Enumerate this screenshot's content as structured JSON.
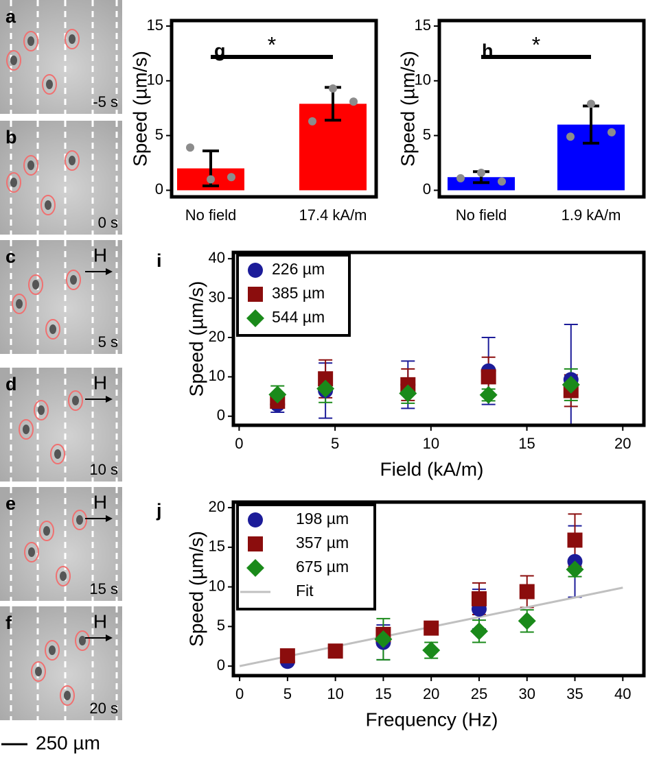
{
  "image_panels": [
    {
      "letter": "a",
      "time": "-5 s"
    },
    {
      "letter": "b",
      "time": "0 s"
    },
    {
      "letter": "c",
      "time": "5 s",
      "field": "H"
    },
    {
      "letter": "d",
      "time": "10 s",
      "field": "H"
    },
    {
      "letter": "e",
      "time": "15 s",
      "field": "H"
    },
    {
      "letter": "f",
      "time": "20 s",
      "field": "H"
    }
  ],
  "scale_bar": "250 µm",
  "chart_data": [
    {
      "type": "bar",
      "panel_label": "g",
      "ylabel": "Speed (µm/s)",
      "categories": [
        "No field",
        "17.4 kA/m"
      ],
      "values": [
        2.0,
        7.9
      ],
      "errors": [
        1.6,
        1.5
      ],
      "points": [
        [
          3.9,
          1.0,
          1.2
        ],
        [
          6.3,
          9.3,
          8.1
        ]
      ],
      "color": "#ff0000",
      "point_color": "#8c8c8c",
      "significance": "*",
      "ylim": [
        -0.6,
        15.5
      ],
      "yticks": [
        0,
        5,
        10,
        15
      ]
    },
    {
      "type": "bar",
      "panel_label": "h",
      "ylabel": "Speed (µm/s)",
      "categories": [
        "No field",
        "1.9 kA/m"
      ],
      "values": [
        1.2,
        6.0
      ],
      "errors": [
        0.5,
        1.7
      ],
      "points": [
        [
          1.1,
          1.6,
          0.8
        ],
        [
          4.9,
          7.9,
          5.3
        ]
      ],
      "color": "#0000ff",
      "point_color": "#8c8c8c",
      "significance": "*",
      "ylim": [
        -0.6,
        15.5
      ],
      "yticks": [
        0,
        5,
        10,
        15
      ]
    },
    {
      "type": "scatter",
      "panel_label": "i",
      "xlabel": "Field (kA/m)",
      "ylabel": "Speed (µm/s)",
      "xlim": [
        -0.3,
        21.1
      ],
      "xticks": [
        0,
        5,
        10,
        15,
        20
      ],
      "ylim": [
        -2.3,
        41.6
      ],
      "yticks": [
        0,
        10,
        20,
        30,
        40
      ],
      "legend": "upper left",
      "series": [
        {
          "name": "226 µm",
          "color": "#1c1c99",
          "marker": "circle",
          "x": [
            2,
            4.5,
            8.8,
            13,
            17.3
          ],
          "values": [
            3,
            6.5,
            8,
            11.5,
            9.3
          ],
          "errors": [
            2,
            7,
            6,
            8.5,
            14
          ]
        },
        {
          "name": "385 µm",
          "color": "#8b0d0d",
          "marker": "square",
          "x": [
            2,
            4.5,
            8.8,
            13,
            17.3
          ],
          "values": [
            3.8,
            9.5,
            8,
            10,
            6.5
          ],
          "errors": [
            1.5,
            4.8,
            4,
            5,
            4
          ]
        },
        {
          "name": "544 µm",
          "color": "#1a8a1a",
          "marker": "diamond",
          "x": [
            2,
            4.5,
            8.8,
            13,
            17.3
          ],
          "values": [
            5.5,
            7,
            5.8,
            5.4,
            8
          ],
          "errors": [
            2.2,
            3.5,
            2.5,
            1.5,
            4
          ]
        }
      ]
    },
    {
      "type": "scatter",
      "panel_label": "j",
      "xlabel": "Frequency (Hz)",
      "ylabel": "Speed (µm/s)",
      "xlim": [
        -0.65,
        42.2
      ],
      "xticks": [
        0,
        5,
        10,
        15,
        20,
        25,
        30,
        35,
        40
      ],
      "ylim": [
        -1.2,
        20.7
      ],
      "yticks": [
        0,
        5,
        10,
        15,
        20
      ],
      "legend": "upper left",
      "series": [
        {
          "name": "198 µm",
          "color": "#1c1c99",
          "marker": "circle",
          "x": [
            5,
            15,
            25,
            35
          ],
          "values": [
            0.6,
            3,
            7.2,
            13.2
          ],
          "errors": [
            0.3,
            2.2,
            2.5,
            4.5
          ]
        },
        {
          "name": "357 µm",
          "color": "#8b0d0d",
          "marker": "square",
          "x": [
            5,
            10,
            15,
            20,
            25,
            30,
            35
          ],
          "values": [
            1.3,
            1.9,
            4,
            4.8,
            8.5,
            9.4,
            15.9
          ],
          "errors": [
            0.3,
            0.3,
            0.6,
            0.5,
            2,
            2,
            3.3
          ]
        },
        {
          "name": "675 µm",
          "color": "#1a8a1a",
          "marker": "diamond",
          "x": [
            15,
            20,
            25,
            30,
            35
          ],
          "values": [
            3.4,
            2,
            4.4,
            5.7,
            12.2
          ],
          "errors": [
            2.6,
            1,
            1.4,
            1.4,
            0.9
          ]
        },
        {
          "name": "Fit",
          "color": "#c0c0c0",
          "marker": "line",
          "x": [
            0,
            40
          ],
          "values": [
            0,
            9.9
          ]
        }
      ]
    }
  ]
}
